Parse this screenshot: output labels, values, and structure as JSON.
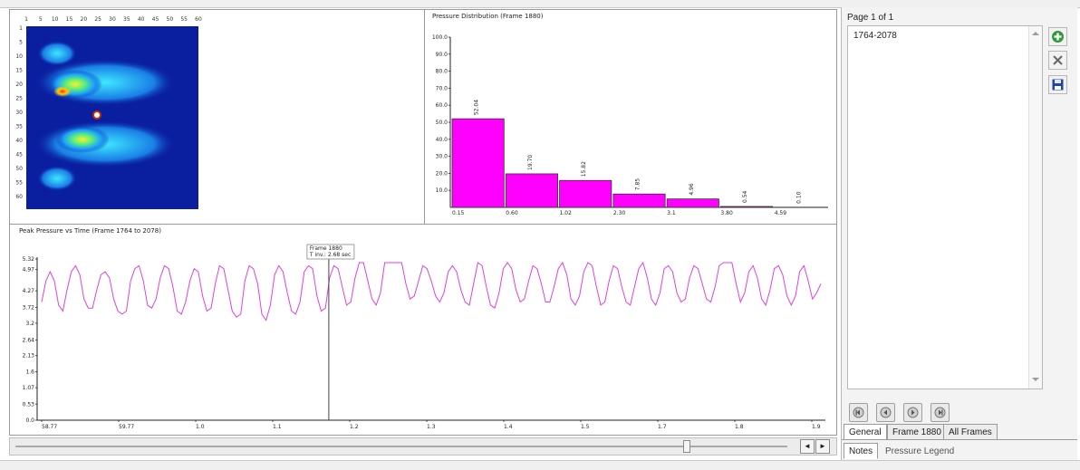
{
  "colors": {
    "magenta": "#ff00ff",
    "series_line": "#e040e0",
    "heatmap_bg": "#0a1ea0",
    "panel_border": "#9a9a9a"
  },
  "heatmap": {
    "x_ticks": [
      "1",
      "5",
      "10",
      "15",
      "20",
      "25",
      "30",
      "35",
      "40",
      "45",
      "50",
      "55",
      "60"
    ],
    "y_ticks": [
      "1",
      "5",
      "10",
      "15",
      "20",
      "25",
      "30",
      "35",
      "40",
      "45",
      "50",
      "55",
      "60"
    ]
  },
  "chart_data": [
    {
      "type": "bar",
      "title": "Pressure Distribution (Frame 1880)",
      "categories": [
        "0.15",
        "0.60",
        "1.02",
        "2.30",
        "3.1",
        "3.80",
        "4.59"
      ],
      "values": [
        52.04,
        19.7,
        15.82,
        7.85,
        4.96,
        0.54,
        0.1
      ],
      "value_labels": [
        "52.04",
        "19.70",
        "15.82",
        "7.85",
        "4.96",
        "0.54",
        "0.10"
      ],
      "y_ticks": [
        "100.0",
        "90.0",
        "80.0",
        "70.0",
        "60.0",
        "50.0",
        "40.0",
        "30.0",
        "20.0",
        "10.0"
      ],
      "ylim": [
        0,
        100
      ],
      "grid": false
    },
    {
      "type": "line",
      "title": "Peak Pressure vs Time (Frame 1764 to 2078)",
      "y_ticks": [
        "5.32",
        "4.97",
        "4.27",
        "3.72",
        "3.2",
        "2.64",
        "2.13",
        "1.6",
        "1.07",
        "0.53",
        "0.0"
      ],
      "ylim": [
        0,
        5.32
      ],
      "x_ticks": [
        "58.77",
        "59.77",
        "1.0",
        "1.1",
        "1.2",
        "1.3",
        "1.4",
        "1.5",
        "1.7",
        "1.8",
        "1.9"
      ],
      "series": [
        {
          "values": [
            3.9,
            4.6,
            4.9,
            4.6,
            3.8,
            3.6,
            4.3,
            4.9,
            5.1,
            4.8,
            4.0,
            3.7,
            3.7,
            4.3,
            4.8,
            4.9,
            4.7,
            4.0,
            3.6,
            3.5,
            3.6,
            4.6,
            5.0,
            5.1,
            4.6,
            3.8,
            3.7,
            4.0,
            4.7,
            5.1,
            5.0,
            4.4,
            3.6,
            3.5,
            3.9,
            4.6,
            5.0,
            4.9,
            4.1,
            3.6,
            3.7,
            4.5,
            5.1,
            5.0,
            4.3,
            3.6,
            3.4,
            3.5,
            4.6,
            5.1,
            5.0,
            4.5,
            3.5,
            3.3,
            3.8,
            4.8,
            5.1,
            4.9,
            4.2,
            3.6,
            3.5,
            3.9,
            4.9,
            5.1,
            5.0,
            4.1,
            3.6,
            3.7,
            4.7,
            5.1,
            5.0,
            4.4,
            3.8,
            3.9,
            4.7,
            5.2,
            5.2,
            4.6,
            4.0,
            3.8,
            4.2,
            5.2,
            5.2,
            5.2,
            5.2,
            5.2,
            4.5,
            4.0,
            4.1,
            4.6,
            5.1,
            5.0,
            4.6,
            4.1,
            3.9,
            4.2,
            4.9,
            5.1,
            4.9,
            4.3,
            3.9,
            3.8,
            4.5,
            5.2,
            5.1,
            4.4,
            3.8,
            3.7,
            4.2,
            5.0,
            5.2,
            5.0,
            4.3,
            3.9,
            4.0,
            4.6,
            5.1,
            5.0,
            4.5,
            3.9,
            3.9,
            4.4,
            5.0,
            5.2,
            4.8,
            4.0,
            3.8,
            4.1,
            4.9,
            5.2,
            5.1,
            4.4,
            3.8,
            3.9,
            4.6,
            5.1,
            5.0,
            4.4,
            3.9,
            3.8,
            4.4,
            5.0,
            5.2,
            4.7,
            4.0,
            3.8,
            4.2,
            5.0,
            5.1,
            4.9,
            4.2,
            3.9,
            4.0,
            4.7,
            5.1,
            5.0,
            4.5,
            4.0,
            3.9,
            4.4,
            5.1,
            5.2,
            5.2,
            5.2,
            4.5,
            3.9,
            4.2,
            4.9,
            5.1,
            4.7,
            4.0,
            3.8,
            4.3,
            5.0,
            5.1,
            4.8,
            4.1,
            3.8,
            4.1,
            4.9,
            5.1,
            4.6,
            4.0,
            4.2,
            4.5
          ]
        }
      ],
      "cursor_value": 0.37,
      "cursor_tooltip": [
        "Frame 1880",
        "T inv.: 2.68 sec"
      ]
    }
  ],
  "right_panel": {
    "page_label": "Page 1 of 1",
    "list_items": [
      "1764-2078"
    ],
    "side_buttons": [
      {
        "icon": "add-icon",
        "color": "#2e9a3a"
      },
      {
        "icon": "delete-icon",
        "color": "#666666"
      },
      {
        "icon": "save-icon",
        "color": "#2244aa"
      }
    ],
    "nav_buttons": [
      "first-frame-icon",
      "previous-frame-icon",
      "next-frame-icon",
      "last-frame-icon"
    ],
    "tabs": [
      "General",
      "Frame 1880",
      "All Frames"
    ],
    "bottom_tabs": [
      "Notes",
      "Pressure Legend"
    ]
  },
  "timeline": {
    "left_arrow": "◄",
    "right_arrow": "►",
    "thumb_value": 0.87
  }
}
